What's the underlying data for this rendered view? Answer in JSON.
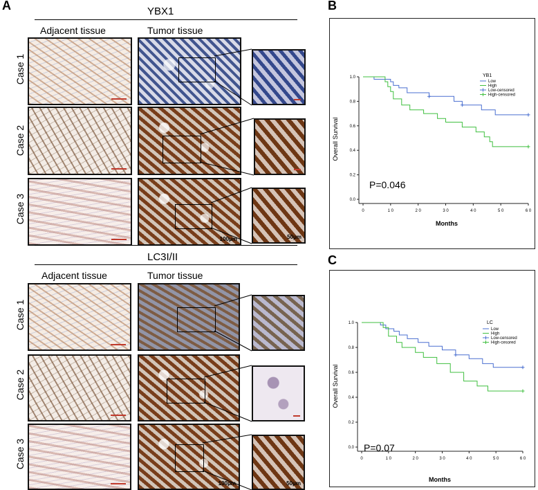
{
  "panel_letters": {
    "a": "A",
    "b": "B",
    "c": "C"
  },
  "ybx1": {
    "marker": "YBX1",
    "adjacent_label": "Adjacent tissue",
    "tumor_label": "Tumor tissue",
    "cases": [
      "Case 1",
      "Case 2",
      "Case 3"
    ],
    "scale_large": "100μm",
    "scale_small": "50μm"
  },
  "lc3": {
    "marker": "LC3I/II",
    "adjacent_label": "Adjacent tissue",
    "tumor_label": "Tumor tissue",
    "cases": [
      "Case 1",
      "Case 2",
      "Case 3"
    ],
    "scale_large": "100μm",
    "scale_small": "50μm"
  },
  "chart_data": [
    {
      "type": "line",
      "panel": "B",
      "xlabel": "Months",
      "ylabel": "Overall Survival",
      "xlim": [
        0,
        60
      ],
      "ylim": [
        0,
        1.0
      ],
      "xticks": [
        0,
        10,
        20,
        30,
        40,
        50,
        60
      ],
      "xtick_labels": [
        "0",
        "1 0",
        "2 0",
        "3 0",
        "4 0",
        "5 0",
        "6 0"
      ],
      "yticks": [
        0,
        0.2,
        0.4,
        0.6,
        0.8,
        1.0
      ],
      "ytick_labels": [
        "0.0",
        "0.2",
        "0.4",
        "0.6",
        "0.8",
        "1.0"
      ],
      "legend_title": "YB1",
      "legend_position": "top-right",
      "legend": [
        "Low",
        "High",
        "Low-censored",
        "High-censored"
      ],
      "annotation": "P=0.046",
      "series": [
        {
          "name": "Low",
          "color": "#4a6fd0",
          "x": [
            0,
            4,
            4,
            10,
            10,
            11,
            11,
            13,
            13,
            16,
            16,
            24,
            24,
            33,
            33,
            36,
            36,
            43,
            43,
            48,
            48,
            60
          ],
          "y": [
            1.0,
            1.0,
            0.98,
            0.98,
            0.96,
            0.96,
            0.93,
            0.93,
            0.91,
            0.91,
            0.87,
            0.87,
            0.84,
            0.84,
            0.8,
            0.8,
            0.77,
            0.77,
            0.73,
            0.73,
            0.69,
            0.69
          ]
        },
        {
          "name": "High",
          "color": "#3fbf3f",
          "x": [
            0,
            8,
            8,
            9,
            9,
            10,
            10,
            11,
            11,
            14,
            14,
            17,
            17,
            22,
            22,
            27,
            27,
            30,
            30,
            36,
            36,
            41,
            41,
            44,
            44,
            46,
            46,
            47,
            47,
            60
          ],
          "y": [
            1.0,
            1.0,
            0.96,
            0.96,
            0.92,
            0.92,
            0.88,
            0.88,
            0.82,
            0.82,
            0.77,
            0.77,
            0.73,
            0.73,
            0.7,
            0.7,
            0.66,
            0.66,
            0.63,
            0.63,
            0.59,
            0.59,
            0.55,
            0.55,
            0.51,
            0.51,
            0.47,
            0.47,
            0.43,
            0.43
          ]
        }
      ],
      "censored": [
        {
          "series": "Low",
          "x": [
            24,
            36,
            60
          ],
          "y": [
            0.84,
            0.77,
            0.69
          ]
        },
        {
          "series": "High",
          "x": [
            60
          ],
          "y": [
            0.43
          ]
        }
      ]
    },
    {
      "type": "line",
      "panel": "C",
      "xlabel": "Months",
      "ylabel": "Overall Survival",
      "xlim": [
        0,
        60
      ],
      "ylim": [
        0,
        1.0
      ],
      "xticks": [
        0,
        10,
        20,
        30,
        40,
        50,
        60
      ],
      "xtick_labels": [
        "0",
        "1 0",
        "2 0",
        "3 0",
        "4 0",
        "5 0",
        "6 0"
      ],
      "yticks": [
        0,
        0.2,
        0.4,
        0.6,
        0.8,
        1.0
      ],
      "ytick_labels": [
        "0.0",
        "0.2",
        "0.4",
        "0.6",
        "0.8",
        "1.0"
      ],
      "legend_title": "LC",
      "legend_position": "top-right",
      "legend": [
        "Low",
        "High",
        "Low-censored",
        "High-cesored"
      ],
      "annotation": "P=0.07",
      "series": [
        {
          "name": "Low",
          "color": "#4a6fd0",
          "x": [
            0,
            7,
            7,
            9,
            9,
            12,
            12,
            14,
            14,
            17,
            17,
            21,
            21,
            25,
            25,
            30,
            30,
            35,
            35,
            40,
            40,
            45,
            45,
            49,
            49,
            60
          ],
          "y": [
            1.0,
            1.0,
            0.98,
            0.98,
            0.95,
            0.95,
            0.93,
            0.93,
            0.9,
            0.9,
            0.87,
            0.87,
            0.84,
            0.84,
            0.81,
            0.81,
            0.78,
            0.78,
            0.74,
            0.74,
            0.71,
            0.71,
            0.67,
            0.67,
            0.64,
            0.64
          ]
        },
        {
          "name": "High",
          "color": "#3fbf3f",
          "x": [
            0,
            8,
            8,
            10,
            10,
            13,
            13,
            15,
            15,
            20,
            20,
            23,
            23,
            28,
            28,
            33,
            33,
            38,
            38,
            43,
            43,
            47,
            47,
            60
          ],
          "y": [
            1.0,
            1.0,
            0.96,
            0.96,
            0.89,
            0.89,
            0.84,
            0.84,
            0.8,
            0.8,
            0.76,
            0.76,
            0.72,
            0.72,
            0.67,
            0.67,
            0.6,
            0.6,
            0.53,
            0.53,
            0.49,
            0.49,
            0.45,
            0.45
          ]
        }
      ],
      "censored": [
        {
          "series": "Low",
          "x": [
            35,
            60
          ],
          "y": [
            0.74,
            0.64
          ]
        },
        {
          "series": "High",
          "x": [
            60
          ],
          "y": [
            0.45
          ]
        }
      ]
    }
  ]
}
